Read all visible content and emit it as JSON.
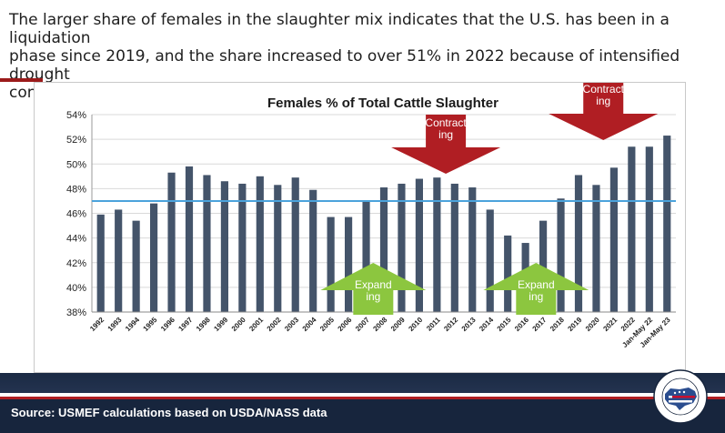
{
  "headline": "The larger share of females in the slaughter mix indicates that the U.S. has been in a liquidation\nphase since 2019, and the share increased to over 51% in 2022 because of intensified drought\nconditions",
  "source": "Source: USMEF calculations based on USDA/NASS data",
  "logo_text": "U.S. MEAT EXPORT FEDERATION",
  "colors": {
    "bar": "#44546a",
    "avg_line": "#4ba3dc",
    "red_arrow": "#b01e23",
    "green_arrow": "#8cc63f",
    "navy": "#17253d"
  },
  "annotations": [
    {
      "label": "Contract\ning",
      "color": "red",
      "direction": "down",
      "center_x": 2011.5
    },
    {
      "label": "Contract\ning",
      "color": "red",
      "direction": "down",
      "center_x": 2020.4
    },
    {
      "label": "Expand\ning",
      "color": "green",
      "direction": "up",
      "center_x": 2007.4
    },
    {
      "label": "Expand\ning",
      "color": "green",
      "direction": "up",
      "center_x": 2016.6
    }
  ],
  "chart_data": {
    "type": "bar",
    "title": "Females % of Total Cattle Slaughter",
    "categories": [
      "1992",
      "1993",
      "1994",
      "1995",
      "1996",
      "1997",
      "1998",
      "1999",
      "2000",
      "2001",
      "2002",
      "2003",
      "2004",
      "2005",
      "2006",
      "2007",
      "2008",
      "2009",
      "2010",
      "2011",
      "2012",
      "2013",
      "2014",
      "2015",
      "2016",
      "2017",
      "2018",
      "2019",
      "2020",
      "2021",
      "2022",
      "Jan-May 22",
      "Jan-May 23"
    ],
    "values": [
      45.9,
      46.3,
      45.4,
      46.8,
      49.3,
      49.8,
      49.1,
      48.6,
      48.4,
      49.0,
      48.3,
      48.9,
      47.9,
      45.7,
      45.7,
      47.0,
      48.1,
      48.4,
      48.8,
      48.9,
      48.4,
      48.1,
      46.3,
      44.2,
      43.6,
      45.4,
      47.2,
      49.1,
      48.3,
      49.7,
      51.4,
      51.4,
      52.3
    ],
    "yticks": [
      "38%",
      "40%",
      "42%",
      "44%",
      "46%",
      "48%",
      "50%",
      "52%",
      "54%"
    ],
    "ylim": [
      38,
      54
    ],
    "reference_line": 47.0,
    "xlabel": "",
    "ylabel": ""
  }
}
